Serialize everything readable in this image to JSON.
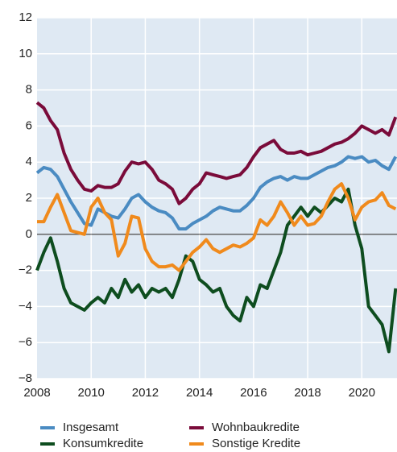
{
  "chart_data": {
    "type": "line",
    "x": [
      2008,
      2008.25,
      2008.5,
      2008.75,
      2009,
      2009.25,
      2009.5,
      2009.75,
      2010,
      2010.25,
      2010.5,
      2010.75,
      2011,
      2011.25,
      2011.5,
      2011.75,
      2012,
      2012.25,
      2012.5,
      2012.75,
      2013,
      2013.25,
      2013.5,
      2013.75,
      2014,
      2014.25,
      2014.5,
      2014.75,
      2015,
      2015.25,
      2015.5,
      2015.75,
      2016,
      2016.25,
      2016.5,
      2016.75,
      2017,
      2017.25,
      2017.5,
      2017.75,
      2018,
      2018.25,
      2018.5,
      2018.75,
      2019,
      2019.25,
      2019.5,
      2019.75,
      2020,
      2020.25,
      2020.5,
      2020.75,
      2021,
      2021.25
    ],
    "series": [
      {
        "name": "Insgesamt",
        "color": "#4a8bc2",
        "values": [
          3.4,
          3.7,
          3.6,
          3.2,
          2.5,
          1.8,
          1.2,
          0.6,
          0.5,
          1.4,
          1.2,
          1.0,
          0.9,
          1.4,
          2.0,
          2.2,
          1.8,
          1.5,
          1.3,
          1.2,
          0.9,
          0.3,
          0.3,
          0.6,
          0.8,
          1.0,
          1.3,
          1.5,
          1.4,
          1.3,
          1.3,
          1.6,
          2.0,
          2.6,
          2.9,
          3.1,
          3.2,
          3.0,
          3.2,
          3.1,
          3.1,
          3.3,
          3.5,
          3.7,
          3.8,
          4.0,
          4.3,
          4.2,
          4.3,
          4.0,
          4.1,
          3.8,
          3.6,
          4.3
        ]
      },
      {
        "name": "Wohnbaukredite",
        "color": "#7a0b3a",
        "values": [
          7.3,
          7.0,
          6.3,
          5.8,
          4.5,
          3.6,
          3.0,
          2.5,
          2.4,
          2.7,
          2.6,
          2.6,
          2.8,
          3.5,
          4.0,
          3.9,
          4.0,
          3.6,
          3.0,
          2.8,
          2.5,
          1.7,
          2.0,
          2.5,
          2.8,
          3.4,
          3.3,
          3.2,
          3.1,
          3.2,
          3.3,
          3.7,
          4.3,
          4.8,
          5.0,
          5.2,
          4.7,
          4.5,
          4.5,
          4.6,
          4.4,
          4.5,
          4.6,
          4.8,
          5.0,
          5.1,
          5.3,
          5.6,
          6.0,
          5.8,
          5.6,
          5.8,
          5.5,
          6.5
        ]
      },
      {
        "name": "Konsumkredite",
        "color": "#0e4d1f",
        "values": [
          -2.0,
          -1.0,
          -0.2,
          -1.5,
          -3.0,
          -3.8,
          -4.0,
          -4.2,
          -3.8,
          -3.5,
          -3.8,
          -3.0,
          -3.5,
          -2.5,
          -3.2,
          -2.8,
          -3.5,
          -3.0,
          -3.2,
          -3.0,
          -3.5,
          -2.5,
          -1.2,
          -1.5,
          -2.5,
          -2.8,
          -3.2,
          -3.0,
          -4.0,
          -4.5,
          -4.8,
          -3.5,
          -4.0,
          -2.8,
          -3.0,
          -2.0,
          -1.0,
          0.5,
          1.0,
          1.5,
          1.0,
          1.5,
          1.2,
          1.6,
          2.0,
          1.8,
          2.5,
          0.5,
          -0.8,
          -4.0,
          -4.5,
          -5.0,
          -6.5,
          -3.0
        ]
      },
      {
        "name": "Sonstige Kredite",
        "color": "#f08a1c",
        "values": [
          0.7,
          0.7,
          1.5,
          2.2,
          1.2,
          0.2,
          0.1,
          0.0,
          1.5,
          2.0,
          1.2,
          0.8,
          -1.2,
          -0.5,
          1.0,
          0.9,
          -0.8,
          -1.5,
          -1.8,
          -1.8,
          -1.7,
          -2.0,
          -1.5,
          -1.0,
          -0.7,
          -0.3,
          -0.8,
          -1.0,
          -0.8,
          -0.6,
          -0.7,
          -0.5,
          -0.2,
          0.8,
          0.5,
          1.0,
          1.8,
          1.2,
          0.5,
          1.0,
          0.5,
          0.6,
          1.0,
          1.8,
          2.5,
          2.8,
          2.0,
          0.8,
          1.5,
          1.8,
          1.9,
          2.3,
          1.6,
          1.4
        ]
      }
    ],
    "xlim": [
      2008,
      2021.3
    ],
    "xticks": [
      2008,
      2010,
      2012,
      2014,
      2016,
      2018,
      2020
    ],
    "ylim": [
      -8,
      12
    ],
    "yticks": [
      {
        "value": -8,
        "label": "−8"
      },
      {
        "value": -6,
        "label": "−6"
      },
      {
        "value": -4,
        "label": "−4"
      },
      {
        "value": -2,
        "label": "−2"
      },
      0,
      2,
      4,
      6,
      8,
      10,
      12
    ],
    "grid": true
  }
}
